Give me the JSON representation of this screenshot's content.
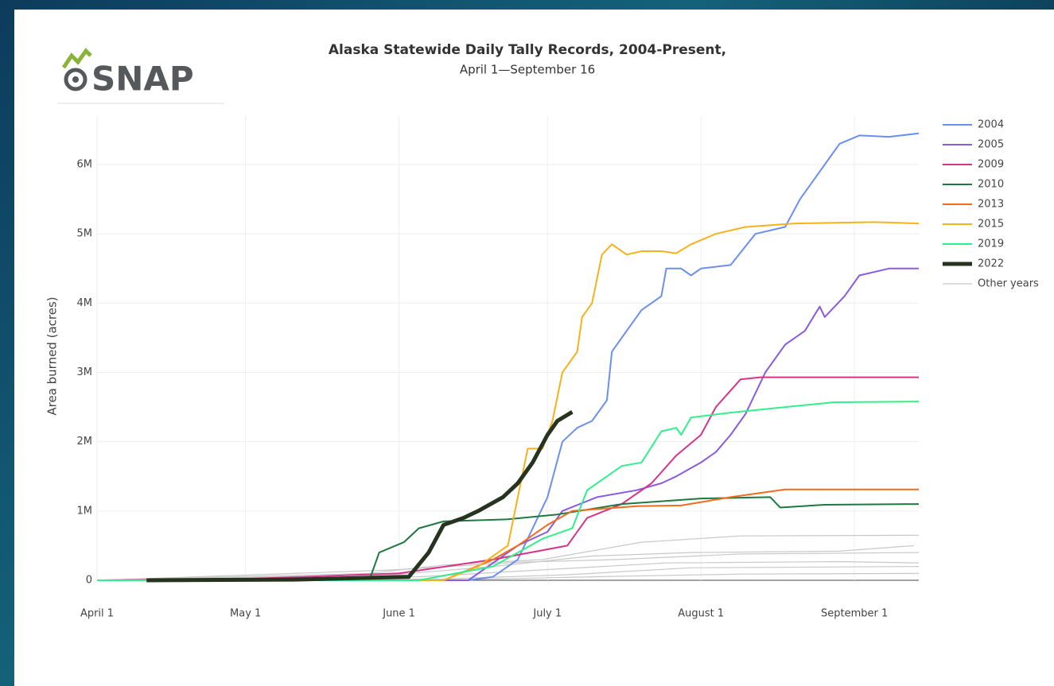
{
  "logo": "SNAP",
  "chart_data": {
    "type": "line",
    "title": "Alaska Statewide Daily Tally Records, 2004-Present,",
    "subtitle": "April 1—September 16",
    "y_label": "Area burned (acres)",
    "xlim": [
      0,
      166
    ],
    "xticks": [
      {
        "value": 0,
        "label": "April 1"
      },
      {
        "value": 30,
        "label": "May 1"
      },
      {
        "value": 61,
        "label": "June 1"
      },
      {
        "value": 91,
        "label": "July 1"
      },
      {
        "value": 122,
        "label": "August 1"
      },
      {
        "value": 153,
        "label": "September 1"
      }
    ],
    "ylim": [
      0,
      6700000
    ],
    "yticks": [
      0,
      {
        "value": 1000000,
        "label": "1M"
      },
      {
        "value": 2000000,
        "label": "2M"
      },
      {
        "value": 3000000,
        "label": "3M"
      },
      {
        "value": 4000000,
        "label": "4M"
      },
      {
        "value": 5000000,
        "label": "5M"
      },
      {
        "value": 6000000,
        "label": "6M"
      }
    ],
    "grid": true,
    "legend": "right",
    "series": [
      {
        "name": "2004",
        "color": "#6b8ff0",
        "width": 2,
        "x": [
          0,
          75,
          80,
          85,
          91,
          94,
          97,
          100,
          103,
          104,
          107,
          110,
          114,
          115,
          118,
          120,
          122,
          128,
          133,
          139,
          142,
          147,
          150,
          154,
          160,
          166
        ],
        "values": [
          0,
          0,
          50000,
          300000,
          1200000,
          2000000,
          2200000,
          2300000,
          2600000,
          3300000,
          3600000,
          3900000,
          4100000,
          4500000,
          4500000,
          4400000,
          4500000,
          4550000,
          5000000,
          5100000,
          5500000,
          6000000,
          6300000,
          6420000,
          6400000,
          6450000
        ]
      },
      {
        "name": "2005",
        "color": "#8a5be0",
        "width": 2,
        "x": [
          0,
          75,
          85,
          91,
          94,
          101,
          109,
          114,
          117,
          122,
          125,
          128,
          131,
          135,
          139,
          143,
          146,
          147,
          151,
          154,
          160,
          166
        ],
        "values": [
          0,
          0,
          500000,
          700000,
          1000000,
          1200000,
          1300000,
          1400000,
          1500000,
          1700000,
          1850000,
          2100000,
          2400000,
          3000000,
          3400000,
          3600000,
          3950000,
          3800000,
          4100000,
          4400000,
          4500000,
          4500000
        ]
      },
      {
        "name": "2009",
        "color": "#d6338a",
        "width": 2,
        "x": [
          0,
          30,
          61,
          80,
          95,
          99,
          106,
          112,
          117,
          122,
          125,
          130,
          134,
          166
        ],
        "values": [
          0,
          20000,
          100000,
          300000,
          500000,
          900000,
          1100000,
          1400000,
          1800000,
          2100000,
          2500000,
          2900000,
          2930000,
          2930000
        ]
      },
      {
        "name": "2010",
        "color": "#1c7a3e",
        "width": 2,
        "x": [
          0,
          55,
          57,
          62,
          65,
          70,
          83,
          93,
          106,
          122,
          136,
          138,
          147,
          166
        ],
        "values": [
          0,
          0,
          400000,
          550000,
          750000,
          850000,
          880000,
          950000,
          1100000,
          1180000,
          1200000,
          1050000,
          1090000,
          1100000
        ]
      },
      {
        "name": "2013",
        "color": "#f26b1d",
        "width": 2,
        "x": [
          0,
          70,
          80,
          85,
          91,
          96,
          109,
          118,
          128,
          139,
          166
        ],
        "values": [
          0,
          0,
          300000,
          500000,
          800000,
          1000000,
          1070000,
          1080000,
          1200000,
          1310000,
          1310000
        ]
      },
      {
        "name": "2015",
        "color": "#f7b11a",
        "width": 2,
        "x": [
          0,
          70,
          77,
          83,
          87,
          90,
          92,
          94,
          97,
          98,
          100,
          102,
          104,
          107,
          110,
          114,
          117,
          120,
          125,
          131,
          141,
          157,
          166
        ],
        "values": [
          0,
          0,
          200000,
          500000,
          1900000,
          1900000,
          2300000,
          3000000,
          3300000,
          3800000,
          4000000,
          4700000,
          4850000,
          4700000,
          4750000,
          4750000,
          4720000,
          4850000,
          5000000,
          5100000,
          5150000,
          5170000,
          5150000
        ]
      },
      {
        "name": "2019",
        "color": "#2ff08a",
        "width": 2,
        "x": [
          0,
          65,
          80,
          90,
          96,
          99,
          106,
          110,
          114,
          117,
          118,
          120,
          128,
          139,
          149,
          166
        ],
        "values": [
          0,
          0,
          200000,
          600000,
          750000,
          1300000,
          1650000,
          1700000,
          2150000,
          2200000,
          2100000,
          2350000,
          2420000,
          2500000,
          2570000,
          2580000
        ]
      },
      {
        "name": "2022",
        "color": "#26331f",
        "width": 5,
        "x": [
          10,
          40,
          63,
          67,
          70,
          74,
          77,
          82,
          85,
          88,
          91,
          93,
          96
        ],
        "values": [
          0,
          10000,
          50000,
          400000,
          800000,
          900000,
          1000000,
          1200000,
          1400000,
          1700000,
          2100000,
          2300000,
          2430000
        ]
      },
      {
        "name": "Other years",
        "color": "#c8c8c8",
        "width": 1.2,
        "lines": [
          {
            "x": [
              0,
              55,
              70,
              90,
              110,
              130,
              166
            ],
            "values": [
              0,
              100000,
              220000,
              300000,
              550000,
              640000,
              650000
            ]
          },
          {
            "x": [
              0,
              60,
              80,
              100,
              120,
              150,
              165
            ],
            "values": [
              0,
              80000,
              200000,
              350000,
              400000,
              420000,
              500000
            ]
          },
          {
            "x": [
              0,
              60,
              85,
              105,
              130,
              166
            ],
            "values": [
              0,
              150000,
              260000,
              300000,
              380000,
              400000
            ]
          },
          {
            "x": [
              0,
              65,
              90,
              115,
              150,
              166
            ],
            "values": [
              0,
              50000,
              150000,
              250000,
              270000,
              250000
            ]
          },
          {
            "x": [
              0,
              70,
              95,
              120,
              166
            ],
            "values": [
              0,
              20000,
              80000,
              180000,
              200000
            ]
          },
          {
            "x": [
              0,
              75,
              100,
              130,
              166
            ],
            "values": [
              0,
              10000,
              50000,
              90000,
              100000
            ]
          }
        ]
      }
    ]
  }
}
